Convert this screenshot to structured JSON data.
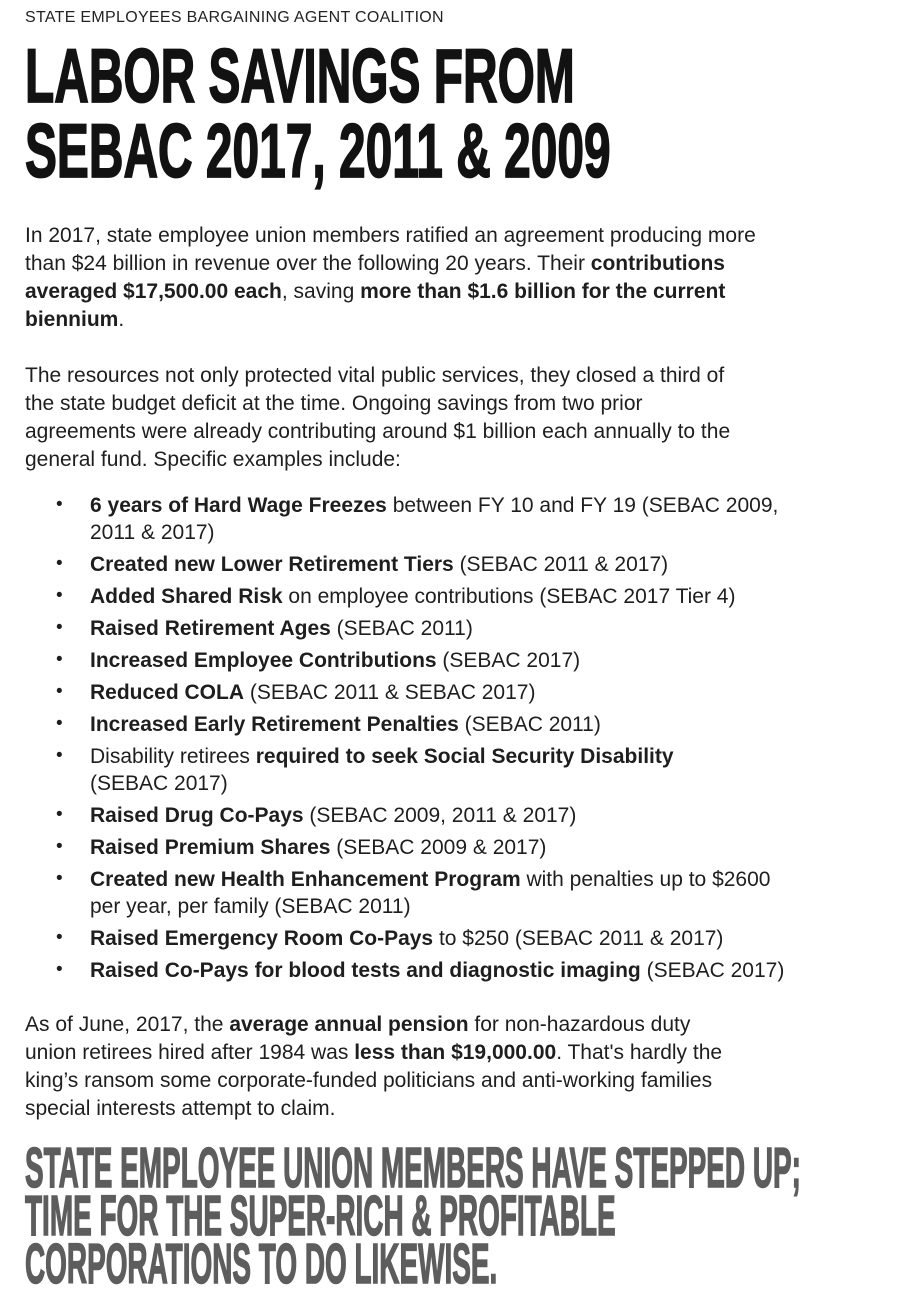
{
  "kicker": "STATE EMPLOYEES BARGAINING AGENT COALITION",
  "title": {
    "lines": [
      "LABOR SAVINGS FROM",
      "SEBAC 2017, 2011 & 2009"
    ]
  },
  "list": {
    "marker": "•"
  },
  "colors": {
    "background": "#ffffff",
    "body_text": "#1e1e1e",
    "headline_text": "#121212",
    "footer_text": "#5d5d5d"
  },
  "paragraphs": {
    "intro": {
      "segments": [
        {
          "t": "In 2017, state employee union members ratified an agreement producing more",
          "b": false
        },
        {
          "br": true
        },
        {
          "t": "than $24 billion in revenue over the following 20 years. Their ",
          "b": false
        },
        {
          "t": "contributions",
          "b": true
        },
        {
          "br": true
        },
        {
          "t": "averaged $17,500.00 each",
          "b": true
        },
        {
          "t": ", saving ",
          "b": false
        },
        {
          "t": "more than $1.6 billion for the current",
          "b": true
        },
        {
          "br": true
        },
        {
          "t": "biennium",
          "b": true
        },
        {
          "t": ".",
          "b": false
        }
      ]
    },
    "resources": {
      "segments": [
        {
          "t": "The resources not only protected vital public services, they closed a third of",
          "b": false
        },
        {
          "br": true
        },
        {
          "t": "the state budget deficit at the time. Ongoing savings from two prior",
          "b": false
        },
        {
          "br": true
        },
        {
          "t": "agreements were already contributing around $1 billion each annually to the",
          "b": false
        },
        {
          "br": true
        },
        {
          "t": "general fund. Specific examples include:",
          "b": false
        }
      ]
    },
    "pension": {
      "segments": [
        {
          "t": "As of June, 2017, the ",
          "b": false
        },
        {
          "t": "average annual pension",
          "b": true
        },
        {
          "t": " for non-hazardous duty",
          "b": false
        },
        {
          "br": true
        },
        {
          "t": "union retirees hired after 1984 was ",
          "b": false
        },
        {
          "t": "less than $19,000.00",
          "b": true
        },
        {
          "t": ". That's hardly the",
          "b": false
        },
        {
          "br": true
        },
        {
          "t": "king’s ransom some corporate-funded politicians and anti-working families",
          "b": false
        },
        {
          "br": true
        },
        {
          "t": "special interests attempt to claim.",
          "b": false
        }
      ]
    }
  },
  "bullets": [
    {
      "segments": [
        {
          "t": "6 years of Hard Wage Freezes",
          "b": true
        },
        {
          "t": " between FY 10 and FY 19 (SEBAC 2009,",
          "b": false
        },
        {
          "br": true
        },
        {
          "t": "2011 & 2017)",
          "b": false
        }
      ]
    },
    {
      "segments": [
        {
          "t": "Created new Lower Retirement Tiers",
          "b": true
        },
        {
          "t": " (SEBAC 2011 & 2017)",
          "b": false
        }
      ]
    },
    {
      "segments": [
        {
          "t": "Added Shared Risk",
          "b": true
        },
        {
          "t": " on employee contributions (SEBAC 2017 Tier 4)",
          "b": false
        }
      ]
    },
    {
      "segments": [
        {
          "t": "Raised Retirement Ages",
          "b": true
        },
        {
          "t": " (SEBAC 2011)",
          "b": false
        }
      ]
    },
    {
      "segments": [
        {
          "t": "Increased Employee Contributions",
          "b": true
        },
        {
          "t": " (SEBAC 2017)",
          "b": false
        }
      ]
    },
    {
      "segments": [
        {
          "t": "Reduced COLA",
          "b": true
        },
        {
          "t": " (SEBAC 2011 & SEBAC 2017)",
          "b": false
        }
      ]
    },
    {
      "segments": [
        {
          "t": "Increased Early Retirement Penalties",
          "b": true
        },
        {
          "t": " (SEBAC 2011)",
          "b": false
        }
      ]
    },
    {
      "segments": [
        {
          "t": "Disability retirees ",
          "b": false
        },
        {
          "t": "required to seek Social Security Disability",
          "b": true
        },
        {
          "br": true
        },
        {
          "t": "(SEBAC 2017)",
          "b": false
        }
      ]
    },
    {
      "segments": [
        {
          "t": "Raised Drug Co-Pays",
          "b": true
        },
        {
          "t": " (SEBAC 2009, 2011 & 2017)",
          "b": false
        }
      ]
    },
    {
      "segments": [
        {
          "t": "Raised Premium Shares",
          "b": true
        },
        {
          "t": " (SEBAC 2009 & 2017)",
          "b": false
        }
      ]
    },
    {
      "segments": [
        {
          "t": "Created new Health Enhancement Program",
          "b": true
        },
        {
          "t": " with penalties up to $2600",
          "b": false
        },
        {
          "br": true
        },
        {
          "t": "per year, per family (SEBAC 2011)",
          "b": false
        }
      ]
    },
    {
      "segments": [
        {
          "t": "Raised Emergency Room Co-Pays",
          "b": true
        },
        {
          "t": " to $250 (SEBAC 2011 & 2017)",
          "b": false
        }
      ]
    },
    {
      "segments": [
        {
          "t": "Raised Co-Pays for blood tests and diagnostic imaging",
          "b": true
        },
        {
          "t": " (SEBAC 2017)",
          "b": false
        }
      ]
    }
  ],
  "footer": {
    "lines": [
      "STATE EMPLOYEE UNION MEMBERS HAVE STEPPED UP;",
      "TIME FOR THE SUPER-RICH & PROFITABLE",
      "CORPORATIONS TO DO LIKEWISE."
    ]
  }
}
